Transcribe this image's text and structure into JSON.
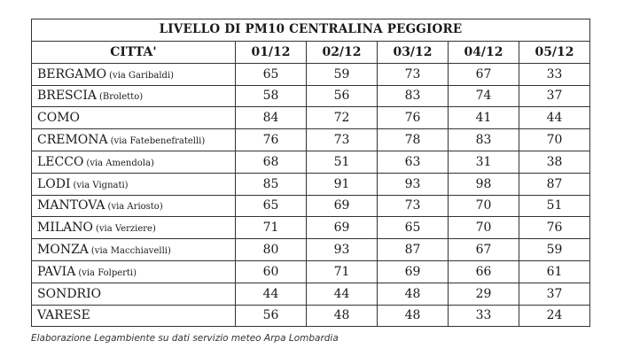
{
  "table": {
    "title": "LIVELLO DI PM10 CENTRALINA PEGGIORE",
    "headers": [
      "CITTA'",
      "01/12",
      "02/12",
      "03/12",
      "04/12",
      "05/12"
    ],
    "rows": [
      {
        "city": "BERGAMO",
        "location": "(via Garibaldi)",
        "values": [
          "65",
          "59",
          "73",
          "67",
          "33"
        ]
      },
      {
        "city": "BRESCIA",
        "location": "(Broletto)",
        "values": [
          "58",
          "56",
          "83",
          "74",
          "37"
        ]
      },
      {
        "city": "COMO",
        "location": "",
        "values": [
          "84",
          "72",
          "76",
          "41",
          "44"
        ]
      },
      {
        "city": "CREMONA",
        "location": "(via Fatebenefratelli)",
        "values": [
          "76",
          "73",
          "78",
          "83",
          "70"
        ]
      },
      {
        "city": "LECCO",
        "location": "(via Amendola)",
        "values": [
          "68",
          "51",
          "63",
          "31",
          "38"
        ]
      },
      {
        "city": "LODI",
        "location": "(via Vignati)",
        "values": [
          "85",
          "91",
          "93",
          "98",
          "87"
        ]
      },
      {
        "city": "MANTOVA",
        "location": "(via Ariosto)",
        "values": [
          "65",
          "69",
          "73",
          "70",
          "51"
        ]
      },
      {
        "city": "MILANO",
        "location": "(via Verziere)",
        "values": [
          "71",
          "69",
          "65",
          "70",
          "76"
        ]
      },
      {
        "city": "MONZA",
        "location": "(via Macchiavelli)",
        "values": [
          "80",
          "93",
          "87",
          "67",
          "59"
        ]
      },
      {
        "city": "PAVIA",
        "location": "(via Folperti)",
        "values": [
          "60",
          "71",
          "69",
          "66",
          "61"
        ]
      },
      {
        "city": "SONDRIO",
        "location": "",
        "values": [
          "44",
          "44",
          "48",
          "29",
          "37"
        ]
      },
      {
        "city": "VARESE",
        "location": "",
        "values": [
          "56",
          "48",
          "48",
          "33",
          "24"
        ]
      }
    ]
  },
  "caption": "Elaborazione Legambiente su dati servizio meteo Arpa Lombardia"
}
